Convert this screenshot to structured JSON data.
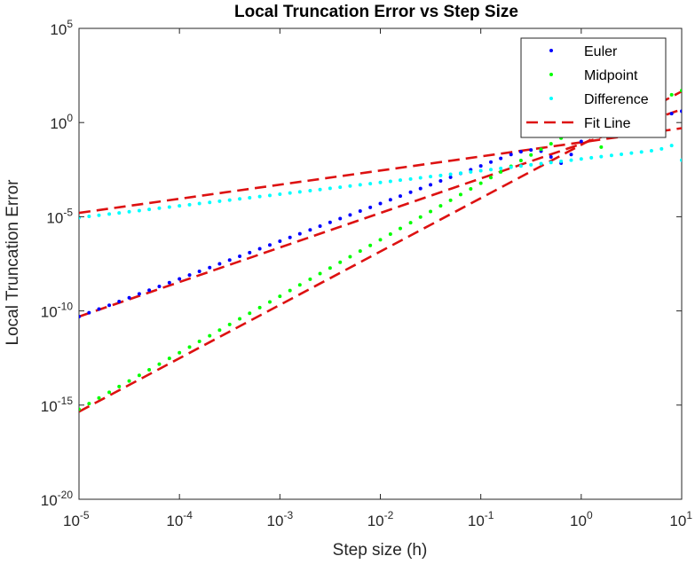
{
  "chart_data": {
    "type": "scatter",
    "title": "Local Truncation Error vs Step Size",
    "xlabel": "Step size (h)",
    "ylabel": "Local Truncation Error",
    "xscale": "log",
    "yscale": "log",
    "xlim": [
      1e-05,
      10
    ],
    "ylim": [
      1e-20,
      100000
    ],
    "grid": false,
    "legend_placement": "top-right",
    "x_ticks": [
      {
        "value": 1e-05,
        "base": "10",
        "exp": "-5"
      },
      {
        "value": 0.0001,
        "base": "10",
        "exp": "-4"
      },
      {
        "value": 0.001,
        "base": "10",
        "exp": "-3"
      },
      {
        "value": 0.01,
        "base": "10",
        "exp": "-2"
      },
      {
        "value": 0.1,
        "base": "10",
        "exp": "-1"
      },
      {
        "value": 1,
        "base": "10",
        "exp": "0"
      },
      {
        "value": 10,
        "base": "10",
        "exp": "1"
      }
    ],
    "y_ticks": [
      {
        "value": 1e-20,
        "base": "10",
        "exp": "-20"
      },
      {
        "value": 1e-15,
        "base": "10",
        "exp": "-15"
      },
      {
        "value": 1e-10,
        "base": "10",
        "exp": "-10"
      },
      {
        "value": 1e-05,
        "base": "10",
        "exp": "-5"
      },
      {
        "value": 1,
        "base": "10",
        "exp": "0"
      },
      {
        "value": 100000,
        "base": "10",
        "exp": "5"
      }
    ],
    "series": [
      {
        "name": "Euler",
        "style": "dots",
        "color": "#0000ff",
        "points": [
          [
            1e-05,
            5e-11
          ],
          [
            1.26e-05,
            8e-11
          ],
          [
            1.58e-05,
            1.25e-10
          ],
          [
            2e-05,
            2e-10
          ],
          [
            2.51e-05,
            3.15e-10
          ],
          [
            3.16e-05,
            5e-10
          ],
          [
            3.98e-05,
            8e-10
          ],
          [
            5e-05,
            1.25e-09
          ],
          [
            6.3e-05,
            2e-09
          ],
          [
            7.94e-05,
            3.15e-09
          ],
          [
            0.0001,
            5e-09
          ],
          [
            0.000126,
            8e-09
          ],
          [
            0.000158,
            1.25e-08
          ],
          [
            0.0002,
            2e-08
          ],
          [
            0.000251,
            3.15e-08
          ],
          [
            0.000316,
            5e-08
          ],
          [
            0.000398,
            8e-08
          ],
          [
            0.0005,
            1.25e-07
          ],
          [
            0.00063,
            2e-07
          ],
          [
            0.000794,
            3.15e-07
          ],
          [
            0.001,
            5e-07
          ],
          [
            0.00126,
            8e-07
          ],
          [
            0.00158,
            1.25e-06
          ],
          [
            0.002,
            2e-06
          ],
          [
            0.00251,
            3.15e-06
          ],
          [
            0.00316,
            5e-06
          ],
          [
            0.00398,
            8e-06
          ],
          [
            0.005,
            1.25e-05
          ],
          [
            0.0063,
            2e-05
          ],
          [
            0.00794,
            3.15e-05
          ],
          [
            0.01,
            5e-05
          ],
          [
            0.0126,
            8e-05
          ],
          [
            0.0158,
            0.000125
          ],
          [
            0.02,
            0.0002
          ],
          [
            0.0251,
            0.000315
          ],
          [
            0.0316,
            0.0005
          ],
          [
            0.0398,
            0.0008
          ],
          [
            0.05,
            0.00125
          ],
          [
            0.063,
            0.002
          ],
          [
            0.0794,
            0.00315
          ],
          [
            0.1,
            0.005
          ],
          [
            0.126,
            0.008
          ],
          [
            0.158,
            0.0125
          ],
          [
            0.2,
            0.02
          ],
          [
            0.251,
            0.028
          ],
          [
            0.316,
            0.035
          ],
          [
            0.398,
            0.03
          ],
          [
            0.5,
            0.015
          ],
          [
            0.63,
            0.007
          ],
          [
            0.794,
            0.02
          ],
          [
            1,
            0.1
          ],
          [
            1.26,
            0.2
          ],
          [
            1.58,
            0.3
          ],
          [
            2,
            0.45
          ],
          [
            2.51,
            0.6
          ],
          [
            3.16,
            0.8
          ],
          [
            3.98,
            1
          ],
          [
            5,
            1.3
          ],
          [
            6.3,
            2
          ],
          [
            7.94,
            3
          ],
          [
            10,
            4
          ]
        ]
      },
      {
        "name": "Midpoint",
        "style": "dots",
        "color": "#00ff00",
        "points": [
          [
            1e-05,
            6e-16
          ],
          [
            1.26e-05,
            1.2e-15
          ],
          [
            1.58e-05,
            2.4e-15
          ],
          [
            2e-05,
            4.8e-15
          ],
          [
            2.51e-05,
            9.6e-15
          ],
          [
            3.16e-05,
            1.9e-14
          ],
          [
            3.98e-05,
            3.8e-14
          ],
          [
            5e-05,
            7.5e-14
          ],
          [
            6.3e-05,
            1.5e-13
          ],
          [
            7.94e-05,
            3e-13
          ],
          [
            0.0001,
            6e-13
          ],
          [
            0.000126,
            1.2e-12
          ],
          [
            0.000158,
            2.4e-12
          ],
          [
            0.0002,
            4.8e-12
          ],
          [
            0.000251,
            9.6e-12
          ],
          [
            0.000316,
            1.9e-11
          ],
          [
            0.000398,
            3.8e-11
          ],
          [
            0.0005,
            7.5e-11
          ],
          [
            0.00063,
            1.5e-10
          ],
          [
            0.000794,
            3e-10
          ],
          [
            0.001,
            6e-10
          ],
          [
            0.00126,
            1.2e-09
          ],
          [
            0.00158,
            2.4e-09
          ],
          [
            0.002,
            4.8e-09
          ],
          [
            0.00251,
            9.6e-09
          ],
          [
            0.00316,
            1.9e-08
          ],
          [
            0.00398,
            3.8e-08
          ],
          [
            0.005,
            7.5e-08
          ],
          [
            0.0063,
            1.5e-07
          ],
          [
            0.00794,
            3e-07
          ],
          [
            0.01,
            6e-07
          ],
          [
            0.0126,
            1.2e-06
          ],
          [
            0.0158,
            2.4e-06
          ],
          [
            0.02,
            4.8e-06
          ],
          [
            0.0251,
            9.6e-06
          ],
          [
            0.0316,
            1.9e-05
          ],
          [
            0.0398,
            3.8e-05
          ],
          [
            0.05,
            7.5e-05
          ],
          [
            0.063,
            0.00015
          ],
          [
            0.0794,
            0.0003
          ],
          [
            0.1,
            0.0006
          ],
          [
            0.126,
            0.0012
          ],
          [
            0.158,
            0.0024
          ],
          [
            0.2,
            0.0048
          ],
          [
            0.251,
            0.0096
          ],
          [
            0.316,
            0.019
          ],
          [
            0.398,
            0.038
          ],
          [
            0.5,
            0.075
          ],
          [
            0.63,
            0.15
          ],
          [
            0.794,
            0.25
          ],
          [
            1,
            0.3
          ],
          [
            1.26,
            0.2
          ],
          [
            1.58,
            0.05
          ],
          [
            6.3,
            15
          ],
          [
            7.94,
            30
          ],
          [
            10,
            50
          ]
        ]
      },
      {
        "name": "Difference",
        "style": "dots",
        "color": "#00ffff",
        "points": [
          [
            1e-05,
            9e-06
          ],
          [
            1.26e-05,
            1.04e-05
          ],
          [
            1.58e-05,
            1.2e-05
          ],
          [
            2e-05,
            1.38e-05
          ],
          [
            2.51e-05,
            1.6e-05
          ],
          [
            3.16e-05,
            1.84e-05
          ],
          [
            3.98e-05,
            2.12e-05
          ],
          [
            5e-05,
            2.45e-05
          ],
          [
            6.3e-05,
            2.83e-05
          ],
          [
            7.94e-05,
            3.26e-05
          ],
          [
            0.0001,
            3.76e-05
          ],
          [
            0.000126,
            4.34e-05
          ],
          [
            0.000158,
            5e-05
          ],
          [
            0.0002,
            5.78e-05
          ],
          [
            0.000251,
            6.66e-05
          ],
          [
            0.000316,
            7.69e-05
          ],
          [
            0.000398,
            8.87e-05
          ],
          [
            0.0005,
            0.000102
          ],
          [
            0.00063,
            0.000118
          ],
          [
            0.000794,
            0.000136
          ],
          [
            0.001,
            0.000157
          ],
          [
            0.00126,
            0.000181
          ],
          [
            0.00158,
            0.000209
          ],
          [
            0.002,
            0.000241
          ],
          [
            0.00251,
            0.000278
          ],
          [
            0.00316,
            0.000321
          ],
          [
            0.00398,
            0.000371
          ],
          [
            0.005,
            0.000428
          ],
          [
            0.0063,
            0.000494
          ],
          [
            0.00794,
            0.00057
          ],
          [
            0.01,
            0.000658
          ],
          [
            0.0126,
            0.000759
          ],
          [
            0.0158,
            0.000876
          ],
          [
            0.02,
            0.00101
          ],
          [
            0.0251,
            0.00117
          ],
          [
            0.0316,
            0.00135
          ],
          [
            0.0398,
            0.00155
          ],
          [
            0.05,
            0.0018
          ],
          [
            0.063,
            0.00207
          ],
          [
            0.0794,
            0.00239
          ],
          [
            0.1,
            0.00276
          ],
          [
            0.126,
            0.00318
          ],
          [
            0.158,
            0.00367
          ],
          [
            0.2,
            0.00424
          ],
          [
            0.251,
            0.0049
          ],
          [
            0.316,
            0.0057
          ],
          [
            0.398,
            0.0066
          ],
          [
            0.5,
            0.0076
          ],
          [
            0.63,
            0.0088
          ],
          [
            0.794,
            0.0101
          ],
          [
            1,
            0.0117
          ],
          [
            1.26,
            0.0135
          ],
          [
            1.58,
            0.0156
          ],
          [
            2,
            0.018
          ],
          [
            2.51,
            0.0207
          ],
          [
            3.16,
            0.024
          ],
          [
            3.98,
            0.0276
          ],
          [
            5,
            0.0318
          ],
          [
            6.3,
            0.04
          ],
          [
            7.94,
            0.06
          ],
          [
            10,
            0.01
          ]
        ]
      },
      {
        "name": "Fit Line",
        "style": "dashed",
        "color": "#dd1111",
        "lines": [
          {
            "x": [
              1e-05,
              10
            ],
            "y": [
              1.6e-05,
              0.5
            ]
          },
          {
            "x": [
              1e-05,
              10
            ],
            "y": [
              5e-11,
              5
            ]
          },
          {
            "x": [
              1e-05,
              10
            ],
            "y": [
              4.5e-16,
              45
            ]
          }
        ]
      }
    ]
  }
}
